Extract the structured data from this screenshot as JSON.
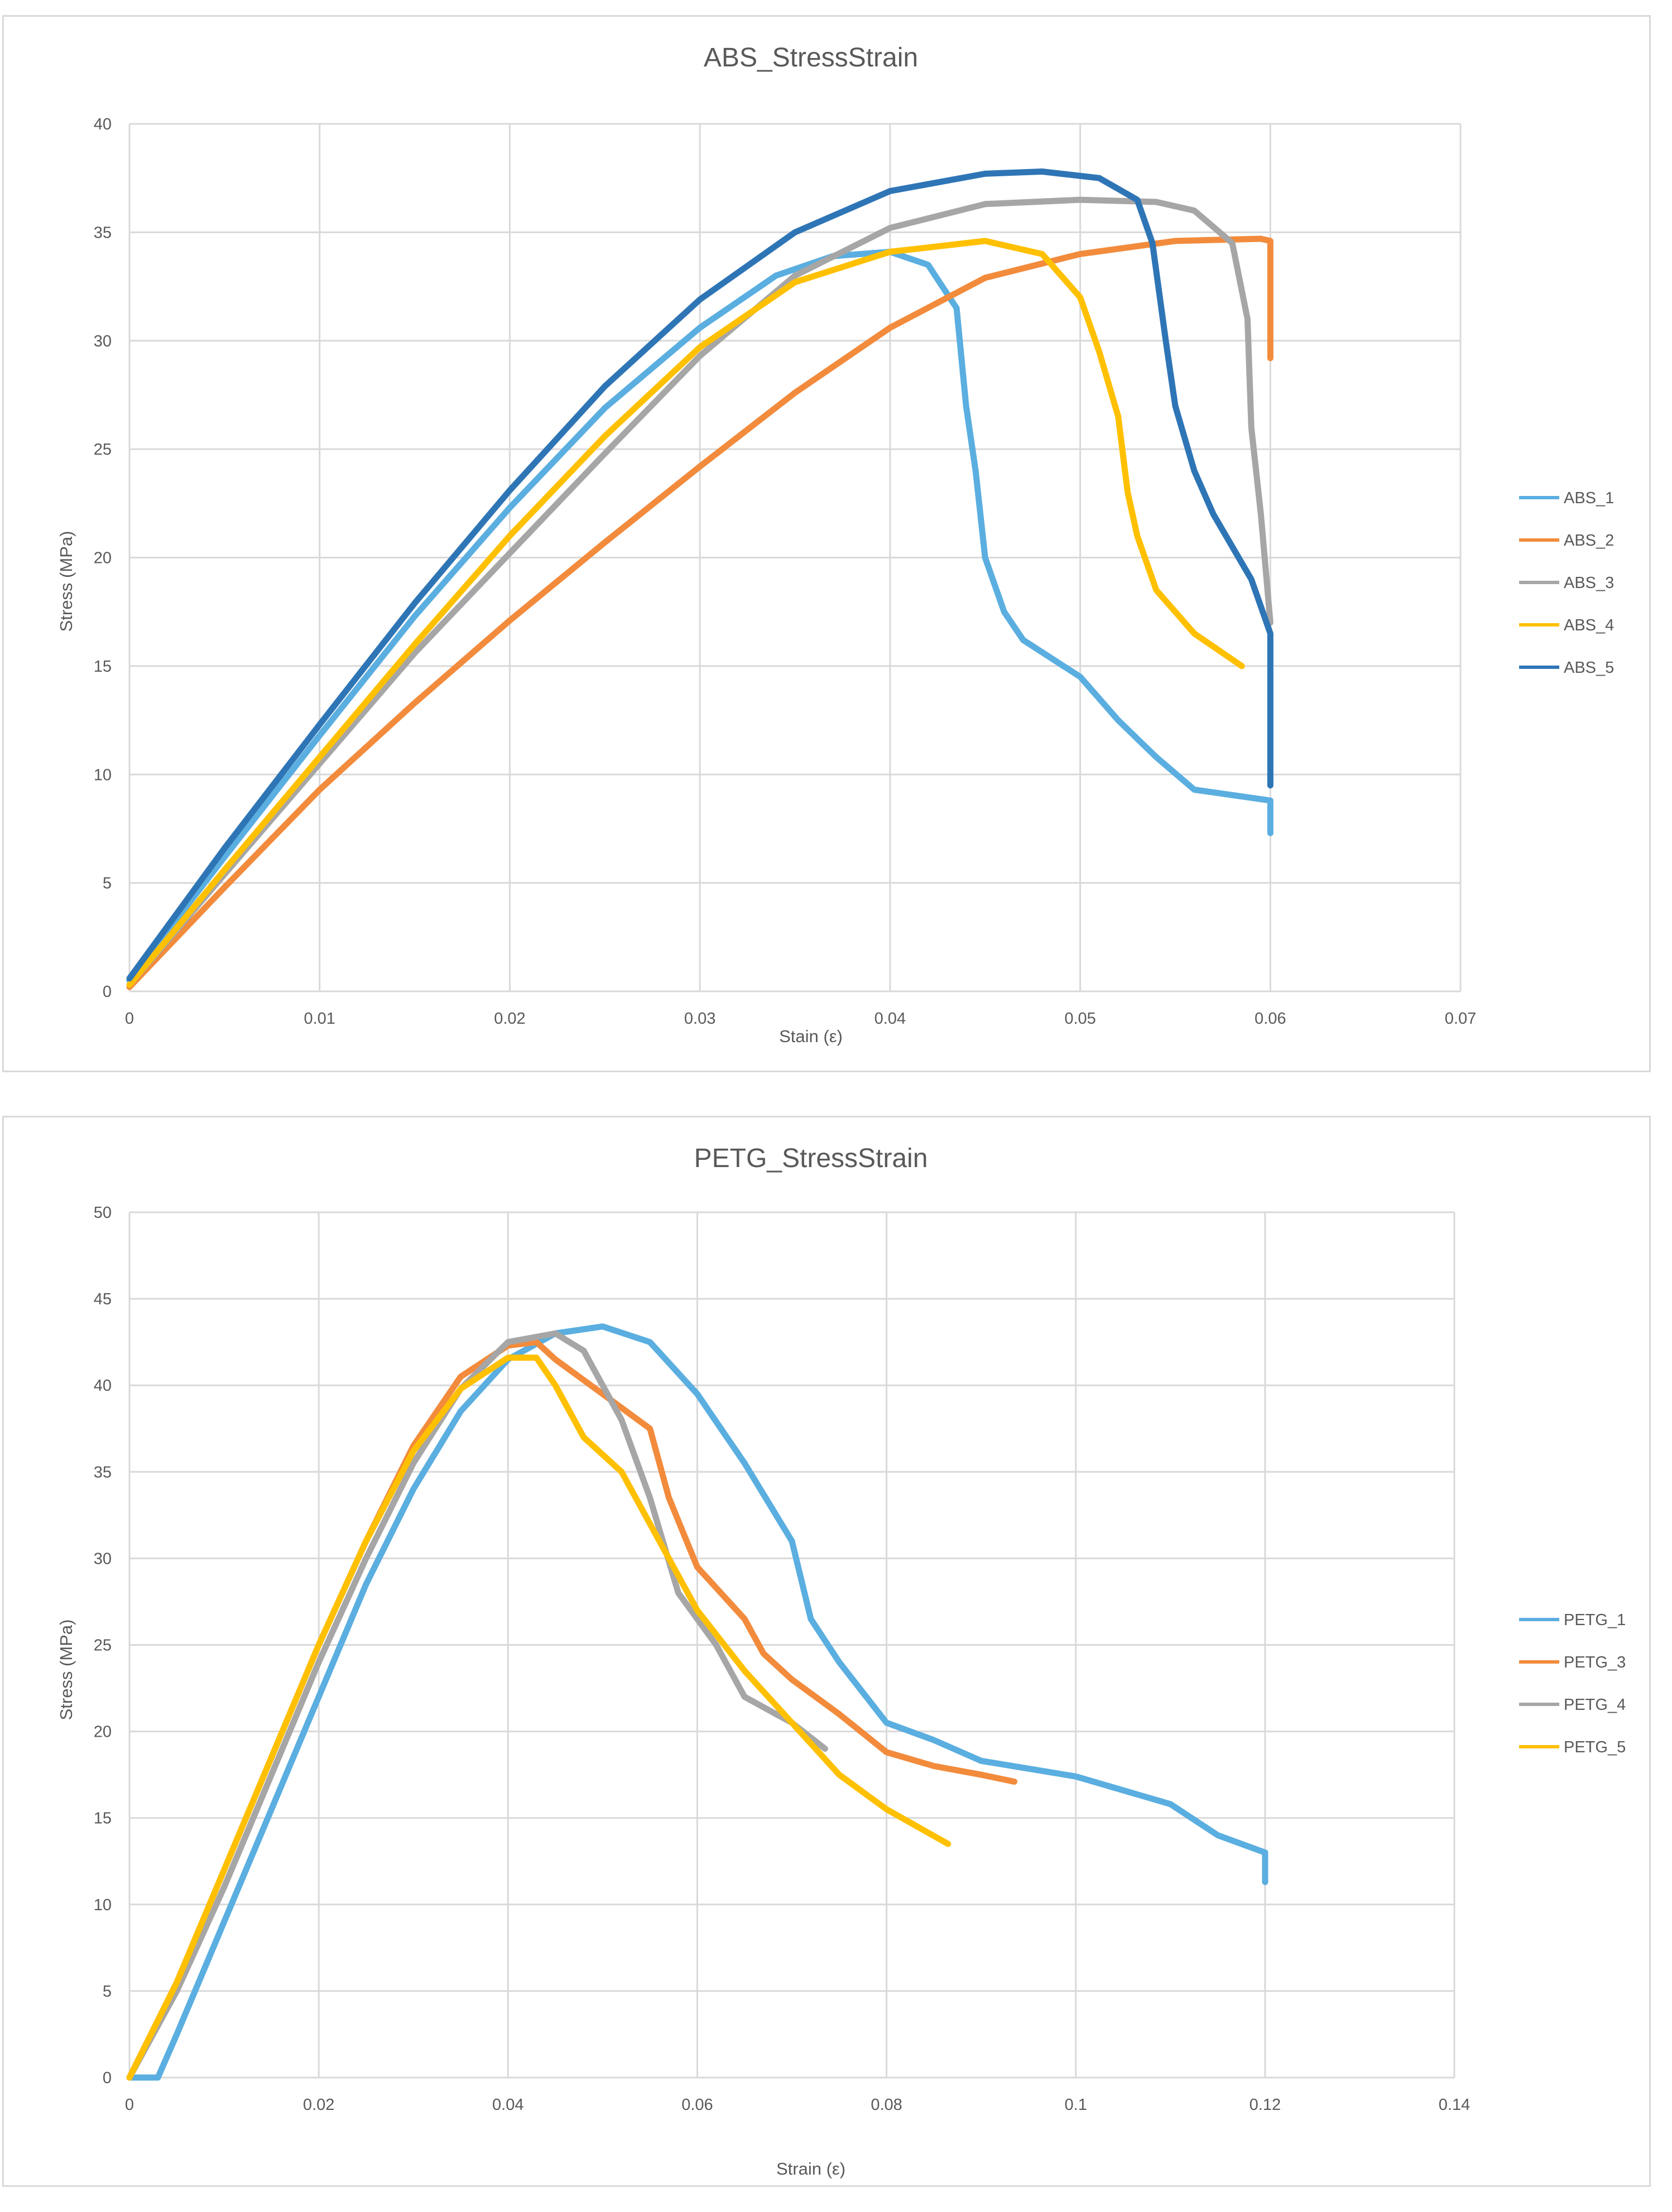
{
  "chart_data": [
    {
      "type": "line",
      "title": "ABS_StressStrain",
      "xlabel": "Stain (ε)",
      "ylabel": "Stress (MPa)",
      "xlim": [
        0,
        0.07
      ],
      "ylim": [
        0,
        40
      ],
      "xticks": [
        0,
        0.01,
        0.02,
        0.03,
        0.04,
        0.05,
        0.06,
        0.07
      ],
      "xtick_labels": [
        "0",
        "0.01",
        "0.02",
        "0.03",
        "0.04",
        "0.05",
        "0.06",
        "0.07"
      ],
      "yticks": [
        0,
        5,
        10,
        15,
        20,
        25,
        30,
        35,
        40
      ],
      "ytick_labels": [
        "0",
        "5",
        "10",
        "15",
        "20",
        "25",
        "30",
        "35",
        "40"
      ],
      "grid": true,
      "legend_position": "right",
      "series": [
        {
          "name": "ABS_1",
          "color": "#5aaee0",
          "points": [
            [
              0,
              0.5
            ],
            [
              0.005,
              6.2
            ],
            [
              0.01,
              11.8
            ],
            [
              0.015,
              17.3
            ],
            [
              0.02,
              22.3
            ],
            [
              0.025,
              26.9
            ],
            [
              0.03,
              30.6
            ],
            [
              0.034,
              33.0
            ],
            [
              0.037,
              33.9
            ],
            [
              0.04,
              34.1
            ],
            [
              0.042,
              33.5
            ],
            [
              0.0435,
              31.5
            ],
            [
              0.044,
              27.0
            ],
            [
              0.0445,
              24.0
            ],
            [
              0.045,
              20.0
            ],
            [
              0.046,
              17.5
            ],
            [
              0.047,
              16.2
            ],
            [
              0.05,
              14.5
            ],
            [
              0.052,
              12.5
            ],
            [
              0.054,
              10.8
            ],
            [
              0.056,
              9.3
            ],
            [
              0.06,
              8.8
            ],
            [
              0.06,
              7.3
            ]
          ]
        },
        {
          "name": "ABS_2",
          "color": "#f28b3c",
          "points": [
            [
              0,
              0.2
            ],
            [
              0.005,
              4.8
            ],
            [
              0.01,
              9.3
            ],
            [
              0.015,
              13.3
            ],
            [
              0.02,
              17.1
            ],
            [
              0.025,
              20.7
            ],
            [
              0.03,
              24.2
            ],
            [
              0.035,
              27.6
            ],
            [
              0.04,
              30.6
            ],
            [
              0.045,
              32.9
            ],
            [
              0.05,
              34.0
            ],
            [
              0.055,
              34.6
            ],
            [
              0.0595,
              34.7
            ],
            [
              0.06,
              34.6
            ],
            [
              0.06,
              29.2
            ]
          ]
        },
        {
          "name": "ABS_3",
          "color": "#a6a6a6",
          "points": [
            [
              0,
              0.3
            ],
            [
              0.005,
              5.4
            ],
            [
              0.01,
              10.5
            ],
            [
              0.015,
              15.6
            ],
            [
              0.02,
              20.2
            ],
            [
              0.025,
              24.8
            ],
            [
              0.03,
              29.3
            ],
            [
              0.035,
              33.0
            ],
            [
              0.04,
              35.2
            ],
            [
              0.045,
              36.3
            ],
            [
              0.05,
              36.5
            ],
            [
              0.054,
              36.4
            ],
            [
              0.056,
              36.0
            ],
            [
              0.058,
              34.5
            ],
            [
              0.0588,
              31.0
            ],
            [
              0.059,
              26.0
            ],
            [
              0.0595,
              22.0
            ],
            [
              0.06,
              17.0
            ]
          ]
        },
        {
          "name": "ABS_4",
          "color": "#ffc000",
          "points": [
            [
              0,
              0.3
            ],
            [
              0.005,
              5.6
            ],
            [
              0.01,
              10.8
            ],
            [
              0.015,
              16.0
            ],
            [
              0.02,
              21.0
            ],
            [
              0.025,
              25.6
            ],
            [
              0.03,
              29.7
            ],
            [
              0.035,
              32.7
            ],
            [
              0.04,
              34.1
            ],
            [
              0.045,
              34.6
            ],
            [
              0.048,
              34.0
            ],
            [
              0.05,
              32.0
            ],
            [
              0.051,
              29.5
            ],
            [
              0.052,
              26.5
            ],
            [
              0.0525,
              23.0
            ],
            [
              0.053,
              21.0
            ],
            [
              0.054,
              18.5
            ],
            [
              0.056,
              16.5
            ],
            [
              0.0585,
              15.0
            ]
          ]
        },
        {
          "name": "ABS_5",
          "color": "#2e75b6",
          "points": [
            [
              0,
              0.6
            ],
            [
              0.005,
              6.6
            ],
            [
              0.01,
              12.3
            ],
            [
              0.015,
              17.9
            ],
            [
              0.02,
              23.1
            ],
            [
              0.025,
              27.9
            ],
            [
              0.03,
              31.9
            ],
            [
              0.035,
              35.0
            ],
            [
              0.04,
              36.9
            ],
            [
              0.045,
              37.7
            ],
            [
              0.048,
              37.8
            ],
            [
              0.051,
              37.5
            ],
            [
              0.053,
              36.5
            ],
            [
              0.0538,
              34.5
            ],
            [
              0.0545,
              30.0
            ],
            [
              0.055,
              27.0
            ],
            [
              0.056,
              24.0
            ],
            [
              0.057,
              22.0
            ],
            [
              0.059,
              19.0
            ],
            [
              0.06,
              16.5
            ],
            [
              0.06,
              9.5
            ]
          ]
        }
      ]
    },
    {
      "type": "line",
      "title": "PETG_StressStrain",
      "xlabel": "Strain (ε)",
      "ylabel": "Stress (MPa)",
      "xlim": [
        0,
        0.14
      ],
      "ylim": [
        0,
        50
      ],
      "xticks": [
        0,
        0.02,
        0.04,
        0.06,
        0.08,
        0.1,
        0.12,
        0.14
      ],
      "xtick_labels": [
        "0",
        "0.02",
        "0.04",
        "0.06",
        "0.08",
        "0.1",
        "0.12",
        "0.14"
      ],
      "yticks": [
        0,
        5,
        10,
        15,
        20,
        25,
        30,
        35,
        40,
        45,
        50
      ],
      "ytick_labels": [
        "0",
        "5",
        "10",
        "15",
        "20",
        "25",
        "30",
        "35",
        "40",
        "45",
        "50"
      ],
      "grid": true,
      "legend_position": "right",
      "series": [
        {
          "name": "PETG_1",
          "color": "#5aaee0",
          "points": [
            [
              0,
              0
            ],
            [
              0.003,
              0
            ],
            [
              0.005,
              2.5
            ],
            [
              0.01,
              9.0
            ],
            [
              0.015,
              15.5
            ],
            [
              0.02,
              22.0
            ],
            [
              0.025,
              28.5
            ],
            [
              0.03,
              34.0
            ],
            [
              0.035,
              38.5
            ],
            [
              0.04,
              41.5
            ],
            [
              0.045,
              43.0
            ],
            [
              0.05,
              43.4
            ],
            [
              0.055,
              42.5
            ],
            [
              0.06,
              39.5
            ],
            [
              0.065,
              35.5
            ],
            [
              0.07,
              31.0
            ],
            [
              0.072,
              26.5
            ],
            [
              0.075,
              24.0
            ],
            [
              0.08,
              20.5
            ],
            [
              0.085,
              19.5
            ],
            [
              0.09,
              18.3
            ],
            [
              0.1,
              17.4
            ],
            [
              0.11,
              15.8
            ],
            [
              0.115,
              14.0
            ],
            [
              0.12,
              13.0
            ],
            [
              0.12,
              11.3
            ]
          ]
        },
        {
          "name": "PETG_3",
          "color": "#f28b3c",
          "points": [
            [
              0,
              0
            ],
            [
              0.005,
              5.5
            ],
            [
              0.01,
              12.0
            ],
            [
              0.015,
              18.5
            ],
            [
              0.02,
              25.0
            ],
            [
              0.025,
              31.0
            ],
            [
              0.03,
              36.5
            ],
            [
              0.035,
              40.5
            ],
            [
              0.04,
              42.3
            ],
            [
              0.043,
              42.5
            ],
            [
              0.045,
              41.5
            ],
            [
              0.05,
              39.5
            ],
            [
              0.055,
              37.5
            ],
            [
              0.057,
              33.5
            ],
            [
              0.06,
              29.5
            ],
            [
              0.065,
              26.5
            ],
            [
              0.067,
              24.5
            ],
            [
              0.07,
              23.0
            ],
            [
              0.075,
              21.0
            ],
            [
              0.08,
              18.8
            ],
            [
              0.085,
              18.0
            ],
            [
              0.09,
              17.5
            ],
            [
              0.0935,
              17.1
            ]
          ]
        },
        {
          "name": "PETG_4",
          "color": "#a6a6a6",
          "points": [
            [
              0,
              0
            ],
            [
              0.005,
              5.0
            ],
            [
              0.01,
              11.0
            ],
            [
              0.015,
              17.5
            ],
            [
              0.02,
              24.0
            ],
            [
              0.025,
              30.0
            ],
            [
              0.03,
              35.5
            ],
            [
              0.035,
              39.8
            ],
            [
              0.04,
              42.5
            ],
            [
              0.045,
              43.0
            ],
            [
              0.048,
              42.0
            ],
            [
              0.052,
              38.0
            ],
            [
              0.055,
              33.5
            ],
            [
              0.058,
              28.0
            ],
            [
              0.062,
              25.0
            ],
            [
              0.065,
              22.0
            ],
            [
              0.07,
              20.5
            ],
            [
              0.0735,
              19.0
            ]
          ]
        },
        {
          "name": "PETG_5",
          "color": "#ffc000",
          "points": [
            [
              0,
              0
            ],
            [
              0.005,
              5.5
            ],
            [
              0.01,
              12.0
            ],
            [
              0.015,
              18.5
            ],
            [
              0.02,
              25.0
            ],
            [
              0.025,
              31.0
            ],
            [
              0.03,
              36.2
            ],
            [
              0.035,
              39.8
            ],
            [
              0.04,
              41.6
            ],
            [
              0.043,
              41.6
            ],
            [
              0.045,
              40.0
            ],
            [
              0.048,
              37.0
            ],
            [
              0.052,
              35.0
            ],
            [
              0.055,
              32.0
            ],
            [
              0.06,
              27.0
            ],
            [
              0.065,
              23.5
            ],
            [
              0.07,
              20.5
            ],
            [
              0.075,
              17.5
            ],
            [
              0.08,
              15.5
            ],
            [
              0.0865,
              13.5
            ]
          ]
        }
      ]
    }
  ]
}
